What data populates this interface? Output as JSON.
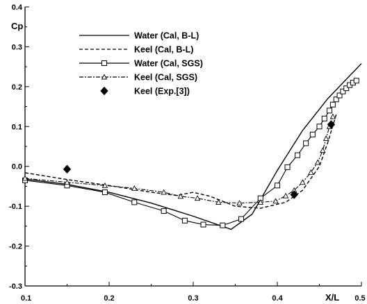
{
  "chart_data": {
    "type": "line",
    "xlabel": "X/L",
    "ylabel": "Cp",
    "xlim": [
      0.1,
      0.5
    ],
    "ylim": [
      -0.3,
      0.4
    ],
    "xticks": [
      "0.1",
      "0.2",
      "0.3",
      "0.4",
      "0.5"
    ],
    "yticks": [
      "-0.3",
      "-0.2",
      "-0.1",
      "0.0",
      "0.1",
      "0.2",
      "0.3",
      "0.4"
    ],
    "grid": false,
    "legend_position": "top-center",
    "series": [
      {
        "name": "Water (Cal, B-L)",
        "style": "solid",
        "color": "#000000",
        "x": [
          0.1,
          0.15,
          0.2,
          0.25,
          0.3,
          0.345,
          0.37,
          0.4,
          0.43,
          0.46,
          0.5
        ],
        "y": [
          -0.032,
          -0.045,
          -0.065,
          -0.092,
          -0.125,
          -0.158,
          -0.12,
          -0.01,
          0.09,
          0.17,
          0.258
        ]
      },
      {
        "name": "Keel (Cal, B-L)",
        "style": "dashed",
        "color": "#000000",
        "x": [
          0.1,
          0.15,
          0.2,
          0.25,
          0.28,
          0.3,
          0.32,
          0.35,
          0.38,
          0.41,
          0.43,
          0.44,
          0.45,
          0.46,
          0.47
        ],
        "y": [
          -0.016,
          -0.033,
          -0.048,
          -0.065,
          -0.073,
          -0.065,
          -0.075,
          -0.1,
          -0.105,
          -0.09,
          -0.06,
          -0.03,
          0.0,
          0.06,
          0.13
        ]
      },
      {
        "name": "Water (Cal, SGS)",
        "style": "solid",
        "marker": "square",
        "color": "#000000",
        "x": [
          0.1,
          0.15,
          0.195,
          0.23,
          0.265,
          0.29,
          0.312,
          0.335,
          0.357,
          0.38,
          0.4,
          0.412,
          0.424,
          0.434,
          0.442,
          0.45,
          0.456,
          0.462,
          0.466,
          0.47,
          0.474,
          0.478,
          0.482,
          0.486,
          0.49,
          0.494
        ],
        "y": [
          -0.035,
          -0.048,
          -0.065,
          -0.09,
          -0.112,
          -0.136,
          -0.146,
          -0.148,
          -0.132,
          -0.08,
          -0.048,
          -0.002,
          0.028,
          0.058,
          0.08,
          0.1,
          0.12,
          0.14,
          0.155,
          0.168,
          0.178,
          0.188,
          0.196,
          0.204,
          0.21,
          0.215
        ]
      },
      {
        "name": "Keel (Cal, SGS)",
        "style": "dashdot",
        "marker": "triangle",
        "color": "#000000",
        "x": [
          0.1,
          0.15,
          0.195,
          0.23,
          0.265,
          0.285,
          0.305,
          0.33,
          0.355,
          0.38,
          0.398,
          0.41,
          0.42,
          0.43,
          0.44,
          0.448,
          0.454,
          0.458,
          0.462,
          0.466
        ],
        "y": [
          -0.03,
          -0.04,
          -0.048,
          -0.055,
          -0.065,
          -0.075,
          -0.08,
          -0.09,
          -0.092,
          -0.09,
          -0.087,
          -0.074,
          -0.06,
          -0.04,
          -0.015,
          0.01,
          0.04,
          0.07,
          0.1,
          0.125
        ]
      },
      {
        "name": "Keel (Exp.[3])",
        "style": "none",
        "marker": "diamond",
        "color": "#000000",
        "x": [
          0.15,
          0.42,
          0.464
        ],
        "y": [
          -0.007,
          -0.071,
          0.105
        ]
      }
    ]
  }
}
